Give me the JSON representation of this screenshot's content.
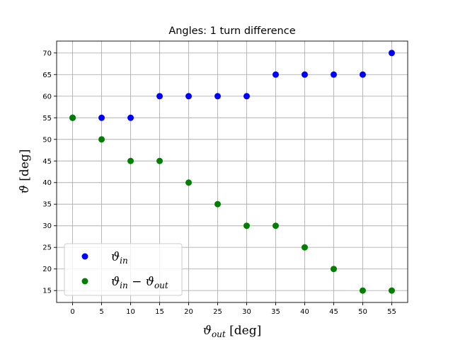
{
  "chart_data": {
    "type": "scatter",
    "title": "Angles: 1 turn difference",
    "xlabel": {
      "symbol": "ϑ",
      "subscript": "out",
      "unit": " [deg]"
    },
    "ylabel": {
      "symbol": "ϑ",
      "subscript": "",
      "unit": " [deg]"
    },
    "xlim": [
      -2.75,
      57.75
    ],
    "ylim": [
      12.25,
      72.75
    ],
    "xticks": [
      0,
      5,
      10,
      15,
      20,
      25,
      30,
      35,
      40,
      45,
      50,
      55
    ],
    "yticks": [
      15,
      20,
      25,
      30,
      35,
      40,
      45,
      50,
      55,
      60,
      65,
      70
    ],
    "grid": true,
    "legend_position": "bottom-left",
    "x": [
      0,
      5,
      10,
      15,
      20,
      25,
      30,
      35,
      40,
      45,
      50,
      55
    ],
    "series": [
      {
        "name": "ϑ_in",
        "legend": {
          "symbol": "ϑ",
          "subscript": "in",
          "minus": "",
          "symbol2": "",
          "subscript2": ""
        },
        "color": "#0000ff",
        "values": [
          55,
          55,
          55,
          60,
          60,
          60,
          60,
          65,
          65,
          65,
          65,
          70
        ]
      },
      {
        "name": "ϑ_in − ϑ_out",
        "legend": {
          "symbol": "ϑ",
          "subscript": "in",
          "minus": " − ",
          "symbol2": "ϑ",
          "subscript2": "out"
        },
        "color": "#008000",
        "values": [
          55,
          50,
          45,
          45,
          40,
          35,
          30,
          30,
          25,
          20,
          15,
          15
        ]
      }
    ]
  }
}
